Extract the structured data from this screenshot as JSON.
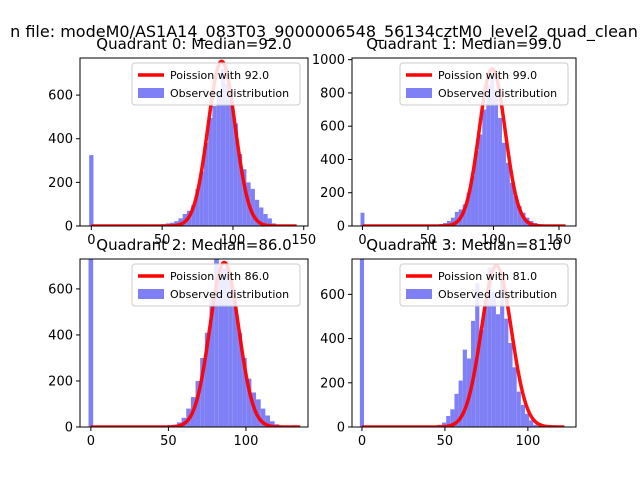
{
  "figure": {
    "suptitle": "n file: modeM0/AS1A14_083T03_9000006548_56134cztM0_level2_quad_clean"
  },
  "colors": {
    "hist": "#7f7ff6",
    "fit": "#ff0000",
    "axis": "#000000"
  },
  "chart_data": [
    {
      "type": "bar",
      "title": "Quadrant 0: Median=92.0",
      "bin_width": 3,
      "bin_centers": [
        0,
        45,
        48,
        51,
        54,
        57,
        60,
        63,
        66,
        69,
        72,
        75,
        78,
        81,
        84,
        87,
        90,
        93,
        96,
        99,
        102,
        105,
        108,
        111,
        114,
        117,
        120,
        123,
        126,
        129,
        132
      ],
      "counts": [
        325,
        3,
        5,
        8,
        12,
        15,
        22,
        35,
        55,
        70,
        95,
        170,
        250,
        380,
        495,
        550,
        615,
        720,
        650,
        575,
        470,
        330,
        260,
        200,
        170,
        120,
        85,
        55,
        35,
        12,
        5
      ],
      "fit_label": "Poission with 92.0",
      "fit_mean": 92.0,
      "fit_peak": 755,
      "fit_range": [
        0,
        145
      ],
      "xlim": [
        -8,
        153
      ],
      "ylim": [
        0,
        770
      ],
      "xticks": [
        0,
        50,
        100,
        150
      ],
      "yticks": [
        0,
        200,
        400,
        600
      ],
      "legend": [
        "Poission with 92.0",
        "Observed distribution"
      ],
      "legend_loc": "upper right"
    },
    {
      "type": "bar",
      "title": "Quadrant 1: Median=99.0",
      "bin_width": 3,
      "bin_centers": [
        0,
        51,
        54,
        57,
        60,
        63,
        66,
        69,
        72,
        75,
        78,
        81,
        84,
        87,
        90,
        93,
        96,
        99,
        102,
        105,
        108,
        111,
        114,
        117,
        120,
        123,
        126,
        129,
        132,
        135
      ],
      "counts": [
        80,
        3,
        5,
        8,
        12,
        18,
        30,
        50,
        85,
        100,
        130,
        200,
        300,
        450,
        550,
        700,
        850,
        900,
        820,
        650,
        500,
        380,
        260,
        180,
        120,
        80,
        50,
        30,
        18,
        10
      ],
      "fit_label": "Poission with 99.0",
      "fit_mean": 99.0,
      "fit_peak": 945,
      "fit_range": [
        0,
        155
      ],
      "xlim": [
        -8,
        163
      ],
      "ylim": [
        0,
        1010
      ],
      "xticks": [
        0,
        50,
        100,
        150
      ],
      "yticks": [
        0,
        200,
        400,
        600,
        800,
        1000
      ],
      "legend": [
        "Poission with 99.0",
        "Observed distribution"
      ],
      "legend_loc": "upper right"
    },
    {
      "type": "bar",
      "title": "Quadrant 2: Median=86.0",
      "bin_width": 3,
      "bin_centers": [
        0,
        48,
        51,
        54,
        57,
        60,
        63,
        66,
        69,
        72,
        75,
        78,
        81,
        84,
        87,
        90,
        93,
        96,
        99,
        102,
        105,
        108,
        111,
        114,
        117,
        120,
        123,
        126
      ],
      "counts": [
        730,
        3,
        6,
        10,
        20,
        40,
        80,
        130,
        200,
        300,
        410,
        560,
        740,
        690,
        690,
        640,
        560,
        410,
        300,
        210,
        150,
        120,
        80,
        50,
        25,
        12,
        6,
        3
      ],
      "fit_label": "Poission with 86.0",
      "fit_mean": 86.0,
      "fit_peak": 715,
      "fit_range": [
        0,
        135
      ],
      "xlim": [
        -7,
        140
      ],
      "ylim": [
        0,
        730
      ],
      "xticks": [
        0,
        50,
        100
      ],
      "yticks": [
        0,
        200,
        400,
        600
      ],
      "legend": [
        "Poission with 86.0",
        "Observed distribution"
      ],
      "legend_loc": "upper right"
    },
    {
      "type": "bar",
      "title": "Quadrant 3: Median=81.0",
      "bin_width": 2.5,
      "bin_centers": [
        0,
        42,
        44.5,
        47,
        49.5,
        52,
        54.5,
        57,
        59.5,
        62,
        64.5,
        67,
        69.5,
        72,
        74.5,
        77,
        79.5,
        82,
        84.5,
        87,
        89.5,
        92,
        94.5,
        97,
        99.5,
        102,
        104.5,
        107
      ],
      "counts": [
        760,
        3,
        5,
        10,
        20,
        50,
        80,
        150,
        210,
        350,
        310,
        480,
        650,
        440,
        560,
        720,
        610,
        510,
        680,
        490,
        380,
        270,
        160,
        100,
        60,
        30,
        10,
        5
      ],
      "fit_label": "Poission with 81.0",
      "fit_mean": 81.0,
      "fit_peak": 730,
      "fit_range": [
        0,
        122
      ],
      "xlim": [
        -6,
        129
      ],
      "ylim": [
        0,
        760
      ],
      "xticks": [
        0,
        50,
        100
      ],
      "yticks": [
        0,
        200,
        400,
        600
      ],
      "legend": [
        "Poission with 81.0",
        "Observed distribution"
      ],
      "legend_loc": "upper right"
    }
  ]
}
